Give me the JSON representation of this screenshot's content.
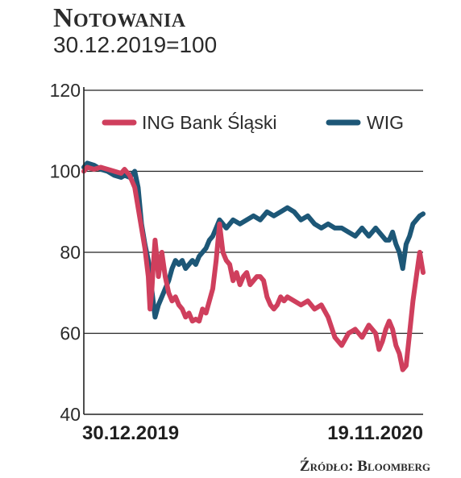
{
  "header": {
    "title": "Notowania",
    "subtitle": "30.12.2019=100"
  },
  "source": "Źródło: Bloomberg",
  "colors": {
    "ing": "#cf3f5d",
    "wig": "#1d5777",
    "grid": "#222222"
  },
  "chart_data": {
    "type": "line",
    "title": "Notowania",
    "subtitle": "30.12.2019=100",
    "ylim": [
      40,
      120
    ],
    "yticks": [
      40,
      60,
      80,
      100,
      120
    ],
    "xlabels": [
      "30.12.2019",
      "19.11.2020"
    ],
    "grid": true,
    "legend": "top",
    "series": [
      {
        "name": "ING Bank Śląski",
        "color": "#cf3f5d",
        "x": [
          0,
          0.01,
          0.03,
          0.05,
          0.07,
          0.09,
          0.11,
          0.12,
          0.135,
          0.15,
          0.16,
          0.17,
          0.18,
          0.19,
          0.195,
          0.2,
          0.205,
          0.21,
          0.215,
          0.22,
          0.23,
          0.24,
          0.25,
          0.26,
          0.27,
          0.28,
          0.29,
          0.3,
          0.31,
          0.32,
          0.33,
          0.34,
          0.35,
          0.36,
          0.37,
          0.38,
          0.39,
          0.4,
          0.41,
          0.42,
          0.43,
          0.44,
          0.45,
          0.46,
          0.47,
          0.48,
          0.49,
          0.5,
          0.51,
          0.52,
          0.53,
          0.54,
          0.55,
          0.56,
          0.57,
          0.58,
          0.59,
          0.6,
          0.62,
          0.64,
          0.66,
          0.68,
          0.7,
          0.72,
          0.74,
          0.76,
          0.78,
          0.8,
          0.82,
          0.84,
          0.86,
          0.87,
          0.88,
          0.89,
          0.9,
          0.91,
          0.92,
          0.93,
          0.94,
          0.95,
          0.96,
          0.97,
          0.98,
          0.99,
          1.0
        ],
        "values": [
          100,
          101,
          100.5,
          101,
          100.5,
          100,
          99.5,
          100.5,
          99,
          96,
          91,
          86,
          81,
          74,
          66,
          70,
          77,
          83,
          79,
          74,
          80,
          74,
          70,
          68,
          69,
          67,
          66,
          64,
          65,
          63,
          63.5,
          63,
          66,
          65,
          68,
          71,
          78,
          87,
          80,
          78,
          77,
          73,
          75,
          72,
          74,
          75,
          72,
          73,
          74,
          74,
          73,
          69,
          67,
          66,
          67,
          69,
          68,
          69,
          68,
          67,
          68,
          66,
          67,
          64,
          59,
          57,
          60,
          61,
          59,
          62,
          60,
          56,
          58,
          61,
          63,
          61,
          57,
          55,
          51,
          52,
          60,
          68,
          74,
          80,
          75
        ]
      },
      {
        "name": "WIG",
        "color": "#1d5777",
        "x": [
          0,
          0.01,
          0.03,
          0.05,
          0.07,
          0.09,
          0.11,
          0.12,
          0.135,
          0.15,
          0.16,
          0.17,
          0.18,
          0.19,
          0.2,
          0.21,
          0.22,
          0.23,
          0.24,
          0.25,
          0.26,
          0.27,
          0.28,
          0.29,
          0.3,
          0.31,
          0.32,
          0.33,
          0.34,
          0.35,
          0.36,
          0.37,
          0.38,
          0.39,
          0.4,
          0.42,
          0.44,
          0.46,
          0.48,
          0.5,
          0.52,
          0.54,
          0.56,
          0.58,
          0.6,
          0.62,
          0.64,
          0.66,
          0.68,
          0.7,
          0.72,
          0.74,
          0.76,
          0.78,
          0.8,
          0.82,
          0.84,
          0.86,
          0.88,
          0.89,
          0.9,
          0.91,
          0.92,
          0.93,
          0.94,
          0.95,
          0.96,
          0.97,
          0.98,
          0.99,
          1.0
        ],
        "values": [
          101,
          102,
          101.5,
          100.5,
          100,
          99,
          98.5,
          99,
          98.5,
          100,
          96,
          87,
          82,
          78,
          71,
          64,
          67,
          69,
          71,
          73,
          76,
          78,
          77,
          78,
          76,
          77,
          78,
          77,
          79,
          80,
          81,
          83,
          84,
          86,
          88,
          86,
          88,
          87,
          88,
          89,
          88,
          90,
          89,
          90,
          91,
          90,
          88,
          89,
          87,
          86,
          87,
          86,
          86,
          85,
          84,
          86,
          84,
          86,
          84,
          83,
          83,
          85,
          82,
          80,
          76,
          82,
          84,
          87,
          88,
          89,
          89.5
        ]
      }
    ]
  }
}
